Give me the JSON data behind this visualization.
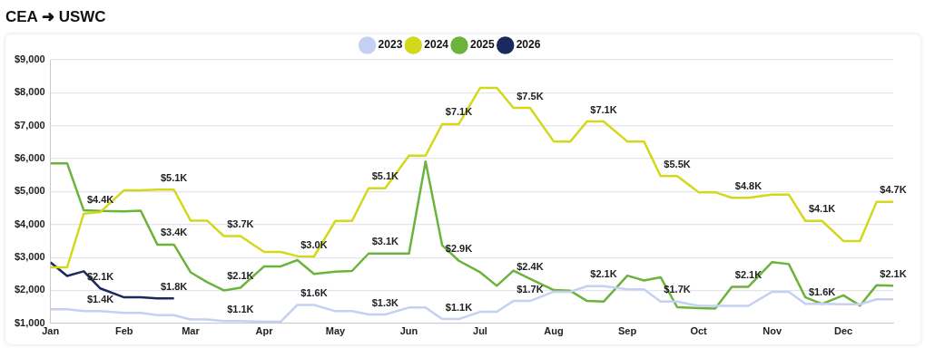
{
  "chart_data": {
    "type": "line",
    "title": "CEA ➜ USWC",
    "x": [
      "--01-01",
      "--01-08",
      "--01-15",
      "--01-22",
      "--02-01",
      "--02-08",
      "--02-15",
      "--02-22",
      "--03-01",
      "--03-08",
      "--03-15",
      "--03-22",
      "--04-01",
      "--04-08",
      "--04-15",
      "--04-22",
      "--05-01",
      "--05-08",
      "--05-15",
      "--05-22",
      "--06-01",
      "--06-08",
      "--06-15",
      "--06-22",
      "--07-01",
      "--07-08",
      "--07-15",
      "--07-22",
      "--08-01",
      "--08-08",
      "--08-15",
      "--08-22",
      "--09-01",
      "--09-08",
      "--09-15",
      "--09-22",
      "--10-01",
      "--10-08",
      "--10-15",
      "--10-22",
      "--11-01",
      "--11-08",
      "--11-15",
      "--11-22",
      "--12-01",
      "--12-08",
      "--12-15",
      "--12-22"
    ],
    "series": [
      {
        "name": "2023",
        "color": "#c5d0f2",
        "values": [
          1430,
          1430,
          1370,
          1370,
          1320,
          1320,
          1250,
          1250,
          1120,
          1120,
          1070,
          1070,
          1050,
          1050,
          1560,
          1560,
          1370,
          1370,
          1270,
          1270,
          1480,
          1480,
          1130,
          1130,
          1350,
          1350,
          1680,
          1680,
          1960,
          1960,
          2130,
          2130,
          2030,
          2030,
          1660,
          1660,
          1530,
          1530,
          1530,
          1530,
          1960,
          1960,
          1590,
          1590,
          1580,
          1580,
          1730,
          1730
        ],
        "value_labels": [
          null,
          null,
          null,
          "$1.4K",
          null,
          null,
          null,
          null,
          null,
          null,
          null,
          "$1.1K",
          null,
          null,
          null,
          "$1.6K",
          null,
          null,
          null,
          "$1.3K",
          null,
          null,
          null,
          "$1.1K",
          null,
          null,
          null,
          "$1.7K",
          null,
          null,
          null,
          "$2.1K",
          null,
          null,
          null,
          "$1.7K",
          null,
          null,
          null,
          null,
          null,
          null,
          null,
          "$1.6K",
          null,
          null,
          null,
          null
        ]
      },
      {
        "name": "2024",
        "color": "#d4d81c",
        "values": [
          2700,
          2700,
          4330,
          4380,
          5040,
          5040,
          5060,
          5060,
          4120,
          4120,
          3650,
          3650,
          3170,
          3170,
          3040,
          3030,
          4110,
          4110,
          5100,
          5100,
          6090,
          6090,
          7050,
          7050,
          8150,
          8150,
          7540,
          7540,
          6520,
          6520,
          7130,
          7130,
          6520,
          6520,
          5470,
          5470,
          4980,
          4980,
          4810,
          4810,
          4910,
          4910,
          4110,
          4110,
          3500,
          3500,
          4690,
          4690
        ],
        "value_labels": [
          null,
          null,
          null,
          "$4.4K",
          null,
          null,
          null,
          "$5.1K",
          null,
          null,
          null,
          "$3.7K",
          null,
          null,
          null,
          "$3.0K",
          null,
          null,
          null,
          "$5.1K",
          null,
          null,
          null,
          "$7.1K",
          null,
          null,
          null,
          "$7.5K",
          null,
          null,
          null,
          "$7.1K",
          null,
          null,
          null,
          "$5.5K",
          null,
          null,
          null,
          "$4.8K",
          null,
          null,
          null,
          "$4.1K",
          null,
          null,
          null,
          "$4.7K"
        ]
      },
      {
        "name": "2025",
        "color": "#6bb33b",
        "values": [
          5860,
          5860,
          4430,
          4410,
          4400,
          4420,
          3390,
          3390,
          2550,
          2250,
          2000,
          2080,
          2730,
          2730,
          2920,
          2500,
          2570,
          2590,
          3120,
          3120,
          3120,
          5910,
          3370,
          2900,
          2550,
          2140,
          2600,
          2350,
          2010,
          1990,
          1680,
          1660,
          2450,
          2300,
          2400,
          1490,
          1460,
          1450,
          2110,
          2110,
          2860,
          2800,
          1790,
          1590,
          1850,
          1540,
          2160,
          2140
        ],
        "value_labels": [
          null,
          null,
          null,
          null,
          null,
          null,
          null,
          "$3.4K",
          null,
          null,
          null,
          "$2.1K",
          null,
          null,
          null,
          null,
          null,
          null,
          null,
          "$3.1K",
          null,
          null,
          null,
          "$2.9K",
          null,
          null,
          null,
          "$2.4K",
          null,
          null,
          null,
          null,
          null,
          null,
          null,
          null,
          null,
          null,
          null,
          "$2.1K",
          null,
          null,
          null,
          null,
          null,
          null,
          null,
          "$2.1K"
        ]
      },
      {
        "name": "2026",
        "color": "#1a2a5e",
        "values": [
          2850,
          2440,
          2580,
          2060,
          1790,
          1790,
          1760,
          1760,
          null,
          null,
          null,
          null,
          null,
          null,
          null,
          null,
          null,
          null,
          null,
          null,
          null,
          null,
          null,
          null,
          null,
          null,
          null,
          null,
          null,
          null,
          null,
          null,
          null,
          null,
          null,
          null,
          null,
          null,
          null,
          null,
          null,
          null,
          null,
          null,
          null,
          null,
          null,
          null
        ],
        "value_labels": [
          null,
          null,
          null,
          "$2.1K",
          null,
          null,
          null,
          "$1.8K",
          null,
          null,
          null,
          null,
          null,
          null,
          null,
          null,
          null,
          null,
          null,
          null,
          null,
          null,
          null,
          null,
          null,
          null,
          null,
          null,
          null,
          null,
          null,
          null,
          null,
          null,
          null,
          null,
          null,
          null,
          null,
          null,
          null,
          null,
          null,
          null,
          null,
          null,
          null,
          null
        ]
      }
    ],
    "xlim": [
      "--01-01",
      "--12-22"
    ],
    "xticks": [
      {
        "value": "--01-01",
        "label": "Jan"
      },
      {
        "value": "--02-01",
        "label": "Feb"
      },
      {
        "value": "--03-01",
        "label": "Mar"
      },
      {
        "value": "--04-01",
        "label": "Apr"
      },
      {
        "value": "--05-01",
        "label": "May"
      },
      {
        "value": "--06-01",
        "label": "Jun"
      },
      {
        "value": "--07-01",
        "label": "Jul"
      },
      {
        "value": "--08-01",
        "label": "Aug"
      },
      {
        "value": "--09-01",
        "label": "Sep"
      },
      {
        "value": "--10-01",
        "label": "Oct"
      },
      {
        "value": "--11-01",
        "label": "Nov"
      },
      {
        "value": "--12-01",
        "label": "Dec"
      }
    ],
    "ylim": [
      1000,
      9000
    ],
    "yticks": [
      {
        "value": 1000,
        "label": "$1,000"
      },
      {
        "value": 2000,
        "label": "$2,000"
      },
      {
        "value": 3000,
        "label": "$3,000"
      },
      {
        "value": 4000,
        "label": "$4,000"
      },
      {
        "value": 5000,
        "label": "$5,000"
      },
      {
        "value": 6000,
        "label": "$6,000"
      },
      {
        "value": 7000,
        "label": "$7,000"
      },
      {
        "value": 8000,
        "label": "$8,000"
      },
      {
        "value": 9000,
        "label": "$9,000"
      }
    ],
    "grid": "y",
    "legend": "top",
    "marker": "none",
    "line_style": "solid"
  }
}
